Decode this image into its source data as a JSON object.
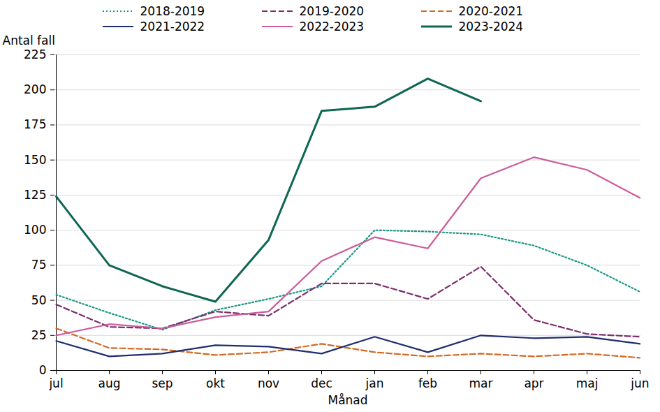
{
  "chart_data": {
    "type": "line",
    "xlabel": "Månad",
    "ylabel": "Antal fall",
    "categories": [
      "jul",
      "aug",
      "sep",
      "okt",
      "nov",
      "dec",
      "jan",
      "feb",
      "mar",
      "apr",
      "maj",
      "jun"
    ],
    "series": [
      {
        "name": "2018-2019",
        "color": "#1a9a86",
        "line_style": "dotted",
        "values": [
          54,
          41,
          29,
          43,
          51,
          60,
          100,
          99,
          97,
          89,
          75,
          56
        ]
      },
      {
        "name": "2019-2020",
        "color": "#7b2d6e",
        "line_style": "dashed",
        "values": [
          47,
          31,
          30,
          42,
          39,
          62,
          62,
          51,
          74,
          36,
          26,
          24
        ]
      },
      {
        "name": "2020-2021",
        "color": "#d4691e",
        "line_style": "dashed",
        "values": [
          30,
          16,
          15,
          11,
          13,
          19,
          13,
          10,
          12,
          10,
          12,
          9
        ]
      },
      {
        "name": "2021-2022",
        "color": "#1f2d6e",
        "line_style": "solid",
        "values": [
          21,
          10,
          12,
          18,
          17,
          12,
          24,
          13,
          25,
          23,
          24,
          19
        ]
      },
      {
        "name": "2022-2023",
        "color": "#cc5c9a",
        "line_style": "solid",
        "values": [
          25,
          33,
          30,
          38,
          42,
          78,
          95,
          87,
          137,
          152,
          143,
          123
        ]
      },
      {
        "name": "2023-2024",
        "color": "#0e6654",
        "line_style": "solid",
        "values": [
          124,
          75,
          60,
          49,
          93,
          185,
          188,
          208,
          192,
          null,
          null,
          null
        ]
      }
    ],
    "ylim": [
      0,
      225
    ],
    "yticks": [
      0,
      25,
      50,
      75,
      100,
      125,
      150,
      175,
      200,
      225
    ],
    "grid": true,
    "legend": "top"
  }
}
